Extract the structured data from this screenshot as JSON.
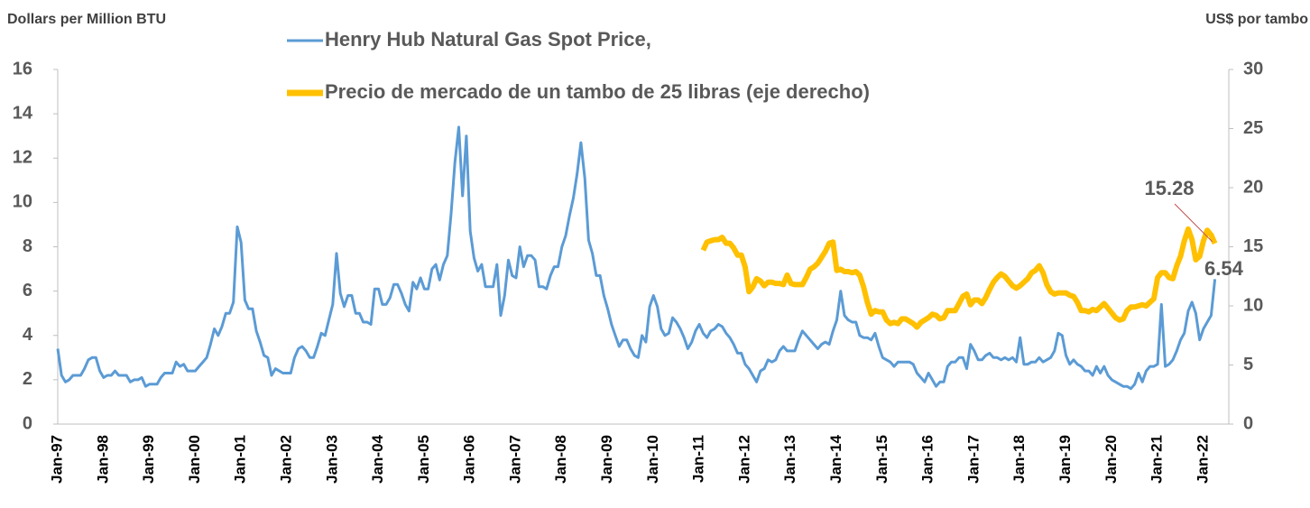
{
  "chart_data": {
    "type": "line",
    "y_label": "Dollars per Million BTU",
    "y2_label": "US$ por tambo",
    "categories": [
      "Jan-97",
      null,
      null,
      null,
      null,
      null,
      null,
      null,
      null,
      null,
      null,
      null,
      "Jan-98",
      null,
      null,
      null,
      null,
      null,
      null,
      null,
      null,
      null,
      null,
      null,
      "Jan-99",
      null,
      null,
      null,
      null,
      null,
      null,
      null,
      null,
      null,
      null,
      null,
      "Jan-00",
      null,
      null,
      null,
      null,
      null,
      null,
      null,
      null,
      null,
      null,
      null,
      "Jan-01",
      null,
      null,
      null,
      null,
      null,
      null,
      null,
      null,
      null,
      null,
      null,
      "Jan-02",
      null,
      null,
      null,
      null,
      null,
      null,
      null,
      null,
      null,
      null,
      null,
      "Jan-03",
      null,
      null,
      null,
      null,
      null,
      null,
      null,
      null,
      null,
      null,
      null,
      "Jan-04",
      null,
      null,
      null,
      null,
      null,
      null,
      null,
      null,
      null,
      null,
      null,
      "Jan-05",
      null,
      null,
      null,
      null,
      null,
      null,
      null,
      null,
      null,
      null,
      null,
      "Jan-06",
      null,
      null,
      null,
      null,
      null,
      null,
      null,
      null,
      null,
      null,
      null,
      "Jan-07",
      null,
      null,
      null,
      null,
      null,
      null,
      null,
      null,
      null,
      null,
      null,
      "Jan-08",
      null,
      null,
      null,
      null,
      null,
      null,
      null,
      null,
      null,
      null,
      null,
      "Jan-09",
      null,
      null,
      null,
      null,
      null,
      null,
      null,
      null,
      null,
      null,
      null,
      "Jan-10",
      null,
      null,
      null,
      null,
      null,
      null,
      null,
      null,
      null,
      null,
      null,
      "Jan-11",
      null,
      null,
      null,
      null,
      null,
      null,
      null,
      null,
      null,
      null,
      null,
      "Jan-12",
      null,
      null,
      null,
      null,
      null,
      null,
      null,
      null,
      null,
      null,
      null,
      "Jan-13",
      null,
      null,
      null,
      null,
      null,
      null,
      null,
      null,
      null,
      null,
      null,
      "Jan-14",
      null,
      null,
      null,
      null,
      null,
      null,
      null,
      null,
      null,
      null,
      null,
      "Jan-15",
      null,
      null,
      null,
      null,
      null,
      null,
      null,
      null,
      null,
      null,
      null,
      "Jan-16",
      null,
      null,
      null,
      null,
      null,
      null,
      null,
      null,
      null,
      null,
      null,
      "Jan-17",
      null,
      null,
      null,
      null,
      null,
      null,
      null,
      null,
      null,
      null,
      null,
      "Jan-18",
      null,
      null,
      null,
      null,
      null,
      null,
      null,
      null,
      null,
      null,
      null,
      "Jan-19",
      null,
      null,
      null,
      null,
      null,
      null,
      null,
      null,
      null,
      null,
      null,
      "Jan-20",
      null,
      null,
      null,
      null,
      null,
      null,
      null,
      null,
      null,
      null,
      null,
      "Jan-21",
      null,
      null,
      null,
      null,
      null,
      null,
      null,
      null,
      null,
      null,
      null,
      "Jan-22",
      null,
      null,
      null
    ],
    "series": [
      {
        "name": "Henry Hub Natural Gas Spot Price,",
        "color": "#5b9bd5",
        "values": [
          3.4,
          2.2,
          1.9,
          2.0,
          2.2,
          2.2,
          2.2,
          2.5,
          2.9,
          3.0,
          3.0,
          2.4,
          2.1,
          2.2,
          2.2,
          2.4,
          2.2,
          2.2,
          2.2,
          1.9,
          2.0,
          2.0,
          2.1,
          1.7,
          1.8,
          1.8,
          1.8,
          2.1,
          2.3,
          2.3,
          2.3,
          2.8,
          2.6,
          2.7,
          2.4,
          2.4,
          2.4,
          2.6,
          2.8,
          3.0,
          3.6,
          4.3,
          4.0,
          4.4,
          5.0,
          5.0,
          5.5,
          8.9,
          8.2,
          5.6,
          5.2,
          5.2,
          4.2,
          3.7,
          3.1,
          3.0,
          2.2,
          2.5,
          2.4,
          2.3,
          2.3,
          2.3,
          3.0,
          3.4,
          3.5,
          3.3,
          3.0,
          3.0,
          3.5,
          4.1,
          4.0,
          4.7,
          5.4,
          7.7,
          5.9,
          5.3,
          5.8,
          5.8,
          5.0,
          5.0,
          4.6,
          4.6,
          4.5,
          6.1,
          6.1,
          5.4,
          5.4,
          5.7,
          6.3,
          6.3,
          5.9,
          5.4,
          5.1,
          6.4,
          6.1,
          6.6,
          6.1,
          6.1,
          7.0,
          7.2,
          6.5,
          7.2,
          7.6,
          9.5,
          11.8,
          13.4,
          10.3,
          13.0,
          8.7,
          7.5,
          6.9,
          7.2,
          6.2,
          6.2,
          6.2,
          7.2,
          4.9,
          5.8,
          7.4,
          6.7,
          6.6,
          8.0,
          7.1,
          7.6,
          7.6,
          7.4,
          6.2,
          6.2,
          6.1,
          6.7,
          7.1,
          7.1,
          8.0,
          8.5,
          9.4,
          10.2,
          11.3,
          12.7,
          11.1,
          8.3,
          7.7,
          6.7,
          6.7,
          5.8,
          5.2,
          4.5,
          4.0,
          3.5,
          3.8,
          3.8,
          3.4,
          3.1,
          3.0,
          4.0,
          3.7,
          5.3,
          5.8,
          5.3,
          4.3,
          4.0,
          4.1,
          4.8,
          4.6,
          4.3,
          3.9,
          3.4,
          3.7,
          4.2,
          4.5,
          4.1,
          3.9,
          4.2,
          4.3,
          4.5,
          4.4,
          4.1,
          3.9,
          3.6,
          3.2,
          3.2,
          2.7,
          2.5,
          2.2,
          1.9,
          2.4,
          2.5,
          2.9,
          2.8,
          2.9,
          3.3,
          3.5,
          3.3,
          3.3,
          3.3,
          3.8,
          4.2,
          4.0,
          3.8,
          3.6,
          3.4,
          3.6,
          3.7,
          3.6,
          4.2,
          4.7,
          6.0,
          4.9,
          4.7,
          4.6,
          4.6,
          4.0,
          3.9,
          3.9,
          3.8,
          4.1,
          3.5,
          3.0,
          2.9,
          2.8,
          2.6,
          2.8,
          2.8,
          2.8,
          2.8,
          2.7,
          2.3,
          2.1,
          1.9,
          2.3,
          2.0,
          1.7,
          1.9,
          1.9,
          2.6,
          2.8,
          2.8,
          3.0,
          3.0,
          2.5,
          3.6,
          3.3,
          2.9,
          2.9,
          3.1,
          3.2,
          3.0,
          3.0,
          2.9,
          3.0,
          2.9,
          3.0,
          2.8,
          3.9,
          2.7,
          2.7,
          2.8,
          2.8,
          3.0,
          2.8,
          2.9,
          3.0,
          3.3,
          4.1,
          4.0,
          3.1,
          2.7,
          2.9,
          2.7,
          2.6,
          2.4,
          2.4,
          2.2,
          2.6,
          2.3,
          2.6,
          2.2,
          2.0,
          1.9,
          1.8,
          1.7,
          1.7,
          1.6,
          1.8,
          2.3,
          1.9,
          2.4,
          2.6,
          2.6,
          2.7,
          5.4,
          2.6,
          2.7,
          2.9,
          3.3,
          3.8,
          4.1,
          5.1,
          5.5,
          5.0,
          3.8,
          4.3,
          4.6,
          4.9,
          6.54
        ]
      },
      {
        "name": "Precio de mercado de un tambo de 25 libras (eje derecho)",
        "color": "#ffc000",
        "axis": "y2",
        "values": [
          null,
          null,
          null,
          null,
          null,
          null,
          null,
          null,
          null,
          null,
          null,
          null,
          null,
          null,
          null,
          null,
          null,
          null,
          null,
          null,
          null,
          null,
          null,
          null,
          null,
          null,
          null,
          null,
          null,
          null,
          null,
          null,
          null,
          null,
          null,
          null,
          null,
          null,
          null,
          null,
          null,
          null,
          null,
          null,
          null,
          null,
          null,
          null,
          null,
          null,
          null,
          null,
          null,
          null,
          null,
          null,
          null,
          null,
          null,
          null,
          null,
          null,
          null,
          null,
          null,
          null,
          null,
          null,
          null,
          null,
          null,
          null,
          null,
          null,
          null,
          null,
          null,
          null,
          null,
          null,
          null,
          null,
          null,
          null,
          null,
          null,
          null,
          null,
          null,
          null,
          null,
          null,
          null,
          null,
          null,
          null,
          null,
          null,
          null,
          null,
          null,
          null,
          null,
          null,
          null,
          null,
          null,
          null,
          null,
          null,
          null,
          null,
          null,
          null,
          null,
          null,
          null,
          null,
          null,
          null,
          null,
          null,
          null,
          null,
          null,
          null,
          null,
          null,
          null,
          null,
          null,
          null,
          null,
          null,
          null,
          null,
          null,
          null,
          null,
          null,
          null,
          null,
          null,
          null,
          null,
          null,
          null,
          null,
          null,
          null,
          null,
          null,
          null,
          null,
          null,
          null,
          null,
          null,
          null,
          null,
          null,
          null,
          null,
          null,
          null,
          null,
          null,
          null,
          null,
          14.7,
          15.4,
          15.5,
          15.6,
          15.6,
          15.8,
          15.3,
          15.3,
          14.9,
          14.3,
          14.3,
          13.3,
          11.2,
          11.6,
          12.3,
          12.1,
          11.7,
          12.0,
          12.0,
          11.9,
          11.9,
          11.8,
          12.6,
          11.9,
          11.8,
          11.8,
          11.8,
          12.4,
          13.1,
          13.3,
          13.6,
          14.1,
          14.6,
          15.3,
          15.4,
          13.0,
          13.1,
          12.9,
          12.9,
          12.8,
          12.9,
          12.6,
          11.6,
          10.3,
          9.3,
          9.6,
          9.5,
          9.5,
          8.8,
          8.5,
          8.6,
          8.5,
          8.9,
          8.9,
          8.7,
          8.5,
          8.2,
          8.6,
          8.8,
          9.0,
          9.3,
          9.2,
          8.9,
          9.0,
          9.6,
          9.6,
          9.6,
          10.2,
          10.8,
          11.0,
          10.1,
          10.5,
          10.5,
          10.2,
          10.7,
          11.4,
          12.0,
          12.4,
          12.7,
          12.5,
          12.1,
          11.7,
          11.5,
          11.7,
          12.0,
          12.3,
          12.8,
          13.0,
          13.4,
          12.8,
          11.8,
          11.2,
          11.0,
          11.1,
          11.1,
          11.1,
          10.9,
          10.8,
          10.3,
          9.6,
          9.6,
          9.5,
          9.7,
          9.6,
          9.9,
          10.2,
          9.8,
          9.4,
          9.0,
          8.8,
          8.9,
          9.6,
          9.9,
          9.9,
          10.0,
          10.1,
          10.0,
          10.3,
          10.6,
          12.4,
          12.8,
          12.8,
          12.4,
          12.3,
          13.4,
          14.2,
          15.5,
          16.5,
          15.6,
          13.9,
          14.2,
          15.5,
          16.4,
          16.0,
          15.28
        ]
      }
    ],
    "ylim": [
      0,
      16
    ],
    "yticks": [
      0,
      2,
      4,
      6,
      8,
      10,
      12,
      14,
      16
    ],
    "y2lim": [
      0,
      30
    ],
    "y2ticks": [
      0,
      5,
      10,
      15,
      20,
      25,
      30
    ],
    "legend": "top"
  }
}
